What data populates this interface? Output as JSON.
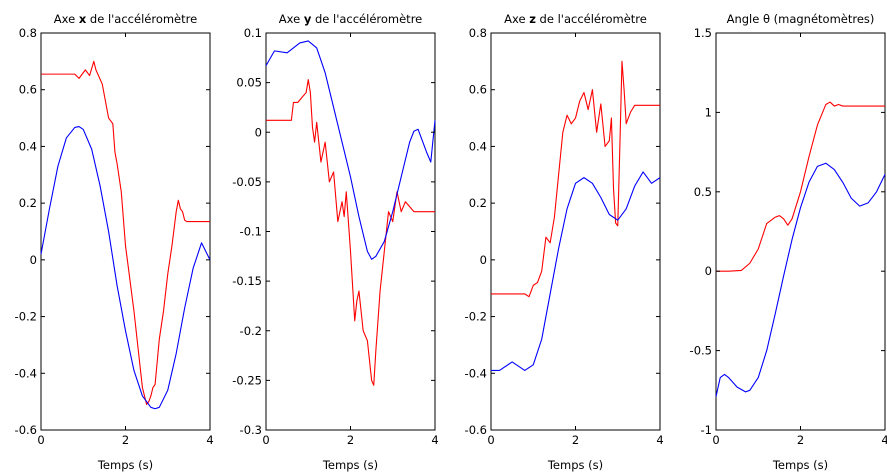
{
  "chart_data": [
    {
      "type": "line",
      "title_pre": "Axe ",
      "title_bold": "x",
      "title_post": " de l'accéléromètre",
      "xlabel": "Temps (s)",
      "xlim": [
        0,
        4
      ],
      "ylim": [
        -0.6,
        0.8
      ],
      "xticks": [
        "0",
        "2",
        "4"
      ],
      "yticks": [
        "-0.6",
        "-0.4",
        "-0.2",
        "0",
        "0.2",
        "0.4",
        "0.6",
        "0.8"
      ],
      "series": [
        {
          "color": "#ff0000",
          "x": [
            0,
            0.4,
            0.8,
            0.9,
            1.05,
            1.15,
            1.25,
            1.3,
            1.45,
            1.6,
            1.7,
            1.75,
            1.8,
            1.9,
            2.0,
            2.2,
            2.4,
            2.5,
            2.55,
            2.6,
            2.65,
            2.7,
            2.8,
            2.9,
            3.0,
            3.1,
            3.2,
            3.25,
            3.3,
            3.35,
            3.4,
            3.45,
            3.5,
            4.0
          ],
          "y": [
            0.655,
            0.655,
            0.655,
            0.64,
            0.67,
            0.65,
            0.7,
            0.67,
            0.62,
            0.5,
            0.48,
            0.38,
            0.34,
            0.24,
            0.05,
            -0.18,
            -0.45,
            -0.51,
            -0.5,
            -0.48,
            -0.45,
            -0.44,
            -0.28,
            -0.18,
            -0.05,
            0.05,
            0.17,
            0.21,
            0.18,
            0.17,
            0.14,
            0.135,
            0.135,
            0.135
          ]
        },
        {
          "color": "#0000ff",
          "x": [
            0,
            0.2,
            0.4,
            0.6,
            0.8,
            0.9,
            1.0,
            1.2,
            1.4,
            1.6,
            1.8,
            2.0,
            2.2,
            2.4,
            2.6,
            2.7,
            2.8,
            3.0,
            3.2,
            3.4,
            3.6,
            3.8,
            4.0
          ],
          "y": [
            0.02,
            0.18,
            0.33,
            0.43,
            0.467,
            0.47,
            0.46,
            0.39,
            0.26,
            0.1,
            -0.09,
            -0.25,
            -0.39,
            -0.48,
            -0.52,
            -0.525,
            -0.52,
            -0.46,
            -0.33,
            -0.17,
            -0.03,
            0.06,
            0.0
          ]
        }
      ]
    },
    {
      "type": "line",
      "title_pre": "Axe ",
      "title_bold": "y",
      "title_post": " de l'accéléromètre",
      "xlabel": "Temps (s)",
      "xlim": [
        0,
        4
      ],
      "ylim": [
        -0.3,
        0.1
      ],
      "xticks": [
        "0",
        "2",
        "4"
      ],
      "yticks": [
        "-0.3",
        "-0.25",
        "-0.2",
        "-0.15",
        "-0.1",
        "-0.05",
        "0",
        "0.05",
        "0.1"
      ],
      "series": [
        {
          "color": "#ff0000",
          "x": [
            0,
            0.3,
            0.6,
            0.65,
            0.75,
            0.85,
            0.95,
            1.0,
            1.05,
            1.1,
            1.15,
            1.2,
            1.3,
            1.4,
            1.5,
            1.6,
            1.7,
            1.8,
            1.85,
            1.9,
            1.95,
            2.0,
            2.05,
            2.1,
            2.15,
            2.2,
            2.3,
            2.4,
            2.5,
            2.55,
            2.6,
            2.7,
            2.8,
            2.9,
            3.0,
            3.1,
            3.2,
            3.3,
            3.5,
            4.0
          ],
          "y": [
            0.012,
            0.012,
            0.012,
            0.03,
            0.03,
            0.035,
            0.04,
            0.053,
            0.04,
            0.005,
            -0.01,
            0.01,
            -0.03,
            -0.01,
            -0.05,
            -0.04,
            -0.09,
            -0.07,
            -0.085,
            -0.06,
            -0.09,
            -0.12,
            -0.155,
            -0.19,
            -0.17,
            -0.16,
            -0.2,
            -0.21,
            -0.25,
            -0.255,
            -0.22,
            -0.16,
            -0.12,
            -0.08,
            -0.09,
            -0.06,
            -0.08,
            -0.07,
            -0.08,
            -0.08
          ]
        },
        {
          "color": "#0000ff",
          "x": [
            0,
            0.2,
            0.5,
            0.8,
            1.0,
            1.2,
            1.4,
            1.6,
            1.8,
            2.0,
            2.2,
            2.4,
            2.5,
            2.6,
            2.8,
            3.0,
            3.2,
            3.4,
            3.5,
            3.6,
            3.8,
            3.9,
            4.0
          ],
          "y": [
            0.067,
            0.082,
            0.08,
            0.09,
            0.092,
            0.085,
            0.06,
            0.025,
            -0.01,
            -0.045,
            -0.085,
            -0.12,
            -0.128,
            -0.125,
            -0.11,
            -0.08,
            -0.045,
            -0.01,
            0.001,
            0.003,
            -0.02,
            -0.03,
            0.012
          ]
        }
      ]
    },
    {
      "type": "line",
      "title_pre": "Axe ",
      "title_bold": "z",
      "title_post": " de l'accéléromètre",
      "xlabel": "Temps (s)",
      "xlim": [
        0,
        4
      ],
      "ylim": [
        -0.6,
        0.8
      ],
      "xticks": [
        "0",
        "2",
        "4"
      ],
      "yticks": [
        "-0.6",
        "-0.4",
        "-0.2",
        "0",
        "0.2",
        "0.4",
        "0.6",
        "0.8"
      ],
      "series": [
        {
          "color": "#ff0000",
          "x": [
            0,
            0.4,
            0.8,
            0.9,
            1.0,
            1.1,
            1.2,
            1.3,
            1.4,
            1.5,
            1.6,
            1.7,
            1.8,
            1.9,
            2.0,
            2.1,
            2.2,
            2.3,
            2.4,
            2.5,
            2.6,
            2.7,
            2.8,
            2.85,
            2.9,
            2.95,
            3.0,
            3.05,
            3.1,
            3.15,
            3.2,
            3.3,
            3.4,
            4.0
          ],
          "y": [
            -0.12,
            -0.12,
            -0.12,
            -0.13,
            -0.09,
            -0.08,
            -0.04,
            0.08,
            0.06,
            0.15,
            0.3,
            0.45,
            0.51,
            0.48,
            0.5,
            0.56,
            0.59,
            0.53,
            0.6,
            0.45,
            0.55,
            0.4,
            0.42,
            0.5,
            0.25,
            0.13,
            0.12,
            0.4,
            0.7,
            0.6,
            0.48,
            0.52,
            0.545,
            0.545
          ]
        },
        {
          "color": "#0000ff",
          "x": [
            0,
            0.2,
            0.5,
            0.8,
            1.0,
            1.2,
            1.4,
            1.6,
            1.8,
            2.0,
            2.2,
            2.4,
            2.6,
            2.8,
            3.0,
            3.2,
            3.4,
            3.6,
            3.8,
            4.0
          ],
          "y": [
            -0.39,
            -0.39,
            -0.36,
            -0.39,
            -0.37,
            -0.28,
            -0.12,
            0.04,
            0.18,
            0.27,
            0.29,
            0.27,
            0.22,
            0.16,
            0.14,
            0.18,
            0.26,
            0.31,
            0.27,
            0.29
          ]
        }
      ]
    },
    {
      "type": "line",
      "title_pre": "Angle θ (magnétomètres)",
      "title_bold": "",
      "title_post": "",
      "xlabel": "Temps (s)",
      "xlim": [
        0,
        4
      ],
      "ylim": [
        -1,
        1.5
      ],
      "xticks": [
        "0",
        "2",
        "4"
      ],
      "yticks": [
        "-1",
        "-0.5",
        "0",
        "0.5",
        "1",
        "1.5"
      ],
      "series": [
        {
          "color": "#ff0000",
          "x": [
            0,
            0.3,
            0.6,
            0.8,
            1.0,
            1.2,
            1.4,
            1.5,
            1.6,
            1.7,
            1.8,
            2.0,
            2.2,
            2.4,
            2.6,
            2.7,
            2.8,
            2.9,
            3.0,
            3.2,
            4.0
          ],
          "y": [
            0,
            0,
            0.005,
            0.05,
            0.14,
            0.3,
            0.34,
            0.35,
            0.33,
            0.29,
            0.33,
            0.5,
            0.72,
            0.92,
            1.05,
            1.065,
            1.04,
            1.05,
            1.04,
            1.04,
            1.04
          ]
        },
        {
          "color": "#0000ff",
          "x": [
            0,
            0.1,
            0.2,
            0.3,
            0.5,
            0.7,
            0.8,
            1.0,
            1.2,
            1.4,
            1.6,
            1.8,
            2.0,
            2.2,
            2.4,
            2.6,
            2.8,
            3.0,
            3.2,
            3.4,
            3.6,
            3.8,
            4.0
          ],
          "y": [
            -0.79,
            -0.67,
            -0.65,
            -0.67,
            -0.73,
            -0.76,
            -0.75,
            -0.67,
            -0.5,
            -0.27,
            -0.03,
            0.2,
            0.4,
            0.56,
            0.66,
            0.68,
            0.64,
            0.56,
            0.46,
            0.41,
            0.43,
            0.5,
            0.61
          ]
        }
      ]
    }
  ]
}
